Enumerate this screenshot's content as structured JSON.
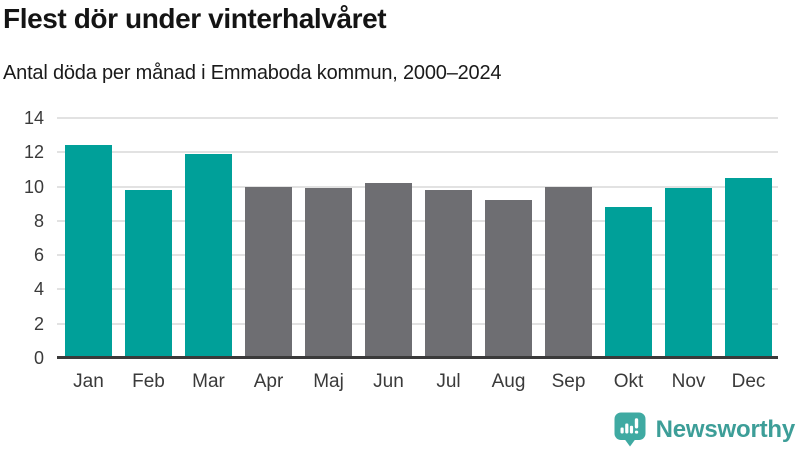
{
  "chart_data": {
    "type": "bar",
    "title": "Flest dör under vinterhalvåret",
    "subtitle": "Antal döda per månad i Emmaboda kommun, 2000–2024",
    "categories": [
      "Jan",
      "Feb",
      "Mar",
      "Apr",
      "Maj",
      "Jun",
      "Jul",
      "Aug",
      "Sep",
      "Okt",
      "Nov",
      "Dec"
    ],
    "values": [
      12.4,
      9.8,
      11.9,
      10.0,
      9.9,
      10.2,
      9.8,
      9.2,
      10.0,
      8.8,
      9.9,
      10.5
    ],
    "highlighted": [
      true,
      true,
      true,
      false,
      false,
      false,
      false,
      false,
      false,
      true,
      true,
      true
    ],
    "xlabel": "",
    "ylabel": "",
    "ylim": [
      0,
      14
    ],
    "yticks": [
      0,
      2,
      4,
      6,
      8,
      10,
      12,
      14
    ],
    "grid": "horizontal",
    "legend": "none",
    "colors": {
      "highlight": "#00A099",
      "default": "#6E6E72",
      "gridline": "#E2E2E2",
      "axis": "#3A3A3A",
      "tick_label": "#3A3A3A"
    }
  },
  "branding": {
    "logo_text": "Newsworthy",
    "logo_icon": "bar-chart-speech-bubble-icon",
    "text_color": "#3D9E98",
    "icon_color": "#3FAAA2"
  }
}
